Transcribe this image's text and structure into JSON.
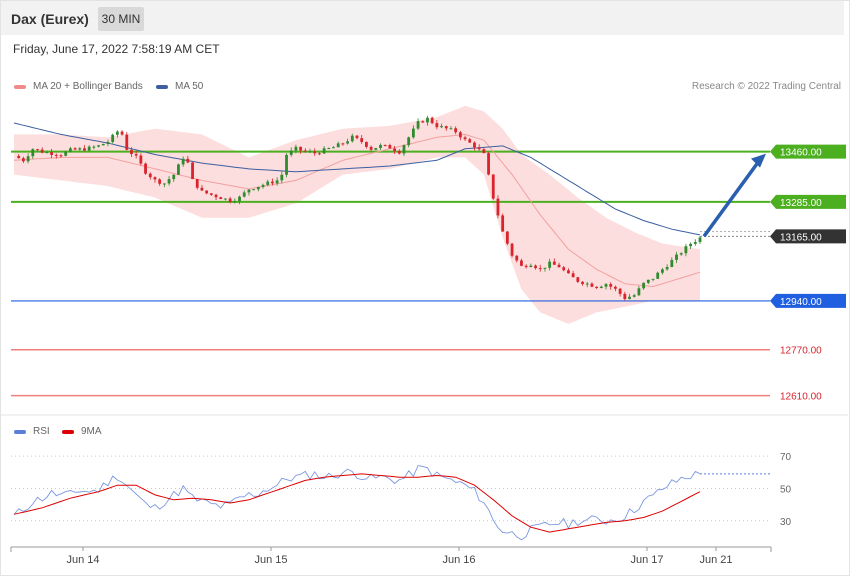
{
  "header": {
    "instrument": "Dax (Eurex)",
    "timeframe": "30 MIN"
  },
  "timestamp": "Friday, June 17, 2022 7:58:19 AM CET",
  "legend": [
    {
      "label": "MA 20 + Bollinger Bands",
      "color": "#f08a8a"
    },
    {
      "label": "MA 50",
      "color": "#3b5fa0"
    }
  ],
  "copyright": "Research © 2022 Trading Central",
  "rsi_legend": [
    {
      "label": "RSI",
      "color": "#5b7fd6"
    },
    {
      "label": "9MA",
      "color": "#dd0000"
    }
  ],
  "colors": {
    "up": "#2e8b2e",
    "down": "#d9232d",
    "bb_fill": "#fcdede",
    "ma20": "#f2a0a0",
    "ma50": "#3b5fa0",
    "resistance": "#4caf1f",
    "support": "#1f5fe0",
    "target": "#2a5fb0",
    "red_level": "#f08080"
  },
  "chart_data": [
    {
      "type": "candlestick",
      "title": "Dax (Eurex)",
      "timeframe": "30 MIN",
      "x_ticks": [
        "Jun 14",
        "Jun 15",
        "Jun 16",
        "Jun 17",
        "Jun 21"
      ],
      "y_range": [
        12560,
        13640
      ],
      "current_price": 13165.0,
      "levels": [
        {
          "value": 13460.0,
          "label": "13460.00",
          "kind": "resistance"
        },
        {
          "value": 13285.0,
          "label": "13285.00",
          "kind": "resistance"
        },
        {
          "value": 13165.0,
          "label": "13165.00",
          "kind": "current"
        },
        {
          "value": 12940.0,
          "label": "12940.00",
          "kind": "support"
        },
        {
          "value": 12770.0,
          "label": "12770.00",
          "kind": "support-2"
        },
        {
          "value": 12610.0,
          "label": "12610.00",
          "kind": "support-3"
        }
      ],
      "target_arrow": {
        "from": 13165,
        "to": 13460
      },
      "close_path": [
        [
          0,
          13445
        ],
        [
          2,
          13430
        ],
        [
          4,
          13470
        ],
        [
          6,
          13460
        ],
        [
          8,
          13455
        ],
        [
          10,
          13450
        ],
        [
          12,
          13465
        ],
        [
          14,
          13468
        ],
        [
          16,
          13472
        ],
        [
          18,
          13480
        ],
        [
          20,
          13495
        ],
        [
          22,
          13530
        ],
        [
          23,
          13520
        ],
        [
          24,
          13470
        ],
        [
          26,
          13440
        ],
        [
          28,
          13390
        ],
        [
          30,
          13360
        ],
        [
          32,
          13350
        ],
        [
          34,
          13380
        ],
        [
          36,
          13440
        ],
        [
          37,
          13420
        ],
        [
          38,
          13360
        ],
        [
          40,
          13320
        ],
        [
          42,
          13310
        ],
        [
          44,
          13300
        ],
        [
          46,
          13290
        ],
        [
          48,
          13300
        ],
        [
          50,
          13330
        ],
        [
          52,
          13340
        ],
        [
          54,
          13350
        ],
        [
          56,
          13360
        ],
        [
          57,
          13380
        ],
        [
          58,
          13450
        ],
        [
          60,
          13470
        ],
        [
          62,
          13460
        ],
        [
          64,
          13455
        ],
        [
          66,
          13465
        ],
        [
          68,
          13475
        ],
        [
          70,
          13490
        ],
        [
          72,
          13510
        ],
        [
          74,
          13495
        ],
        [
          76,
          13470
        ],
        [
          78,
          13480
        ],
        [
          80,
          13475
        ],
        [
          82,
          13460
        ],
        [
          84,
          13510
        ],
        [
          86,
          13560
        ],
        [
          88,
          13575
        ],
        [
          90,
          13550
        ],
        [
          92,
          13540
        ],
        [
          94,
          13530
        ],
        [
          96,
          13500
        ],
        [
          98,
          13480
        ],
        [
          100,
          13450
        ],
        [
          102,
          13300
        ],
        [
          104,
          13180
        ],
        [
          106,
          13100
        ],
        [
          108,
          13060
        ],
        [
          110,
          13070
        ],
        [
          112,
          13050
        ],
        [
          114,
          13070
        ],
        [
          116,
          13060
        ],
        [
          118,
          13030
        ],
        [
          120,
          13010
        ],
        [
          122,
          13000
        ],
        [
          124,
          12990
        ],
        [
          126,
          13000
        ],
        [
          128,
          12980
        ],
        [
          130,
          12950
        ],
        [
          132,
          12960
        ],
        [
          134,
          13000
        ],
        [
          136,
          13020
        ],
        [
          138,
          13050
        ],
        [
          140,
          13080
        ],
        [
          142,
          13110
        ],
        [
          144,
          13140
        ],
        [
          146,
          13160
        ]
      ],
      "ma20": [
        [
          0,
          13430
        ],
        [
          10,
          13440
        ],
        [
          20,
          13440
        ],
        [
          30,
          13400
        ],
        [
          40,
          13360
        ],
        [
          50,
          13330
        ],
        [
          60,
          13360
        ],
        [
          70,
          13430
        ],
        [
          80,
          13470
        ],
        [
          90,
          13510
        ],
        [
          96,
          13520
        ],
        [
          100,
          13500
        ],
        [
          106,
          13380
        ],
        [
          112,
          13240
        ],
        [
          118,
          13120
        ],
        [
          124,
          13050
        ],
        [
          130,
          13000
        ],
        [
          136,
          12990
        ],
        [
          142,
          13020
        ],
        [
          146,
          13040
        ]
      ],
      "bb_upper": [
        [
          0,
          13520
        ],
        [
          10,
          13520
        ],
        [
          20,
          13510
        ],
        [
          30,
          13540
        ],
        [
          40,
          13520
        ],
        [
          50,
          13440
        ],
        [
          60,
          13500
        ],
        [
          70,
          13540
        ],
        [
          80,
          13550
        ],
        [
          90,
          13580
        ],
        [
          96,
          13620
        ],
        [
          100,
          13600
        ],
        [
          104,
          13540
        ],
        [
          108,
          13450
        ],
        [
          114,
          13380
        ],
        [
          120,
          13300
        ],
        [
          126,
          13230
        ],
        [
          132,
          13180
        ],
        [
          138,
          13140
        ],
        [
          146,
          13120
        ]
      ],
      "bb_lower": [
        [
          0,
          13380
        ],
        [
          10,
          13360
        ],
        [
          20,
          13340
        ],
        [
          30,
          13300
        ],
        [
          40,
          13230
        ],
        [
          50,
          13230
        ],
        [
          60,
          13280
        ],
        [
          70,
          13380
        ],
        [
          80,
          13400
        ],
        [
          90,
          13440
        ],
        [
          96,
          13440
        ],
        [
          100,
          13380
        ],
        [
          104,
          13160
        ],
        [
          108,
          12980
        ],
        [
          112,
          12900
        ],
        [
          118,
          12860
        ],
        [
          124,
          12900
        ],
        [
          130,
          12920
        ],
        [
          136,
          12940
        ],
        [
          146,
          12940
        ]
      ],
      "ma50": [
        [
          0,
          13560
        ],
        [
          10,
          13520
        ],
        [
          20,
          13490
        ],
        [
          30,
          13450
        ],
        [
          40,
          13420
        ],
        [
          50,
          13400
        ],
        [
          60,
          13390
        ],
        [
          70,
          13400
        ],
        [
          80,
          13410
        ],
        [
          90,
          13430
        ],
        [
          96,
          13470
        ],
        [
          104,
          13480
        ],
        [
          110,
          13440
        ],
        [
          116,
          13380
        ],
        [
          122,
          13320
        ],
        [
          128,
          13260
        ],
        [
          134,
          13220
        ],
        [
          140,
          13190
        ],
        [
          146,
          13170
        ]
      ]
    },
    {
      "type": "line",
      "title": "RSI",
      "y_ticks": [
        70,
        50,
        30
      ],
      "y_range": [
        15,
        80
      ],
      "series": [
        {
          "name": "RSI",
          "values": [
            [
              0,
              33
            ],
            [
              2,
              37
            ],
            [
              4,
              42
            ],
            [
              6,
              44
            ],
            [
              8,
              47
            ],
            [
              10,
              46
            ],
            [
              12,
              46
            ],
            [
              14,
              49
            ],
            [
              16,
              48
            ],
            [
              18,
              49
            ],
            [
              20,
              54
            ],
            [
              22,
              58
            ],
            [
              24,
              52
            ],
            [
              26,
              46
            ],
            [
              28,
              40
            ],
            [
              30,
              38
            ],
            [
              32,
              42
            ],
            [
              34,
              46
            ],
            [
              36,
              50
            ],
            [
              38,
              44
            ],
            [
              40,
              42
            ],
            [
              42,
              40
            ],
            [
              44,
              39
            ],
            [
              46,
              40
            ],
            [
              48,
              44
            ],
            [
              50,
              46
            ],
            [
              52,
              47
            ],
            [
              54,
              50
            ],
            [
              56,
              52
            ],
            [
              58,
              56
            ],
            [
              60,
              57
            ],
            [
              62,
              58
            ],
            [
              64,
              59
            ],
            [
              66,
              57
            ],
            [
              68,
              58
            ],
            [
              70,
              60
            ],
            [
              72,
              60
            ],
            [
              74,
              58
            ],
            [
              76,
              56
            ],
            [
              78,
              57
            ],
            [
              80,
              56
            ],
            [
              82,
              55
            ],
            [
              84,
              58
            ],
            [
              86,
              62
            ],
            [
              88,
              62
            ],
            [
              90,
              58
            ],
            [
              92,
              56
            ],
            [
              94,
              54
            ],
            [
              96,
              52
            ],
            [
              98,
              48
            ],
            [
              100,
              42
            ],
            [
              102,
              30
            ],
            [
              104,
              24
            ],
            [
              106,
              22
            ],
            [
              108,
              21
            ],
            [
              110,
              24
            ],
            [
              112,
              26
            ],
            [
              114,
              28
            ],
            [
              116,
              29
            ],
            [
              118,
              28
            ],
            [
              120,
              30
            ],
            [
              122,
              30
            ],
            [
              124,
              31
            ],
            [
              126,
              30
            ],
            [
              128,
              31
            ],
            [
              130,
              33
            ],
            [
              132,
              37
            ],
            [
              134,
              42
            ],
            [
              136,
              45
            ],
            [
              138,
              50
            ],
            [
              140,
              53
            ],
            [
              142,
              56
            ],
            [
              144,
              58
            ],
            [
              146,
              59
            ]
          ]
        },
        {
          "name": "9MA",
          "values": [
            [
              0,
              34
            ],
            [
              6,
              38
            ],
            [
              12,
              44
            ],
            [
              18,
              48
            ],
            [
              22,
              52
            ],
            [
              26,
              52
            ],
            [
              30,
              46
            ],
            [
              34,
              43
            ],
            [
              38,
              44
            ],
            [
              42,
              43
            ],
            [
              46,
              41
            ],
            [
              50,
              43
            ],
            [
              54,
              47
            ],
            [
              58,
              51
            ],
            [
              62,
              55
            ],
            [
              66,
              57
            ],
            [
              70,
              58
            ],
            [
              74,
              59
            ],
            [
              78,
              58
            ],
            [
              82,
              57
            ],
            [
              86,
              57
            ],
            [
              90,
              58
            ],
            [
              94,
              57
            ],
            [
              98,
              52
            ],
            [
              102,
              43
            ],
            [
              106,
              33
            ],
            [
              110,
              26
            ],
            [
              114,
              23
            ],
            [
              118,
              25
            ],
            [
              122,
              27
            ],
            [
              126,
              29
            ],
            [
              130,
              30
            ],
            [
              134,
              32
            ],
            [
              138,
              36
            ],
            [
              142,
              42
            ],
            [
              146,
              48
            ]
          ]
        }
      ]
    }
  ]
}
